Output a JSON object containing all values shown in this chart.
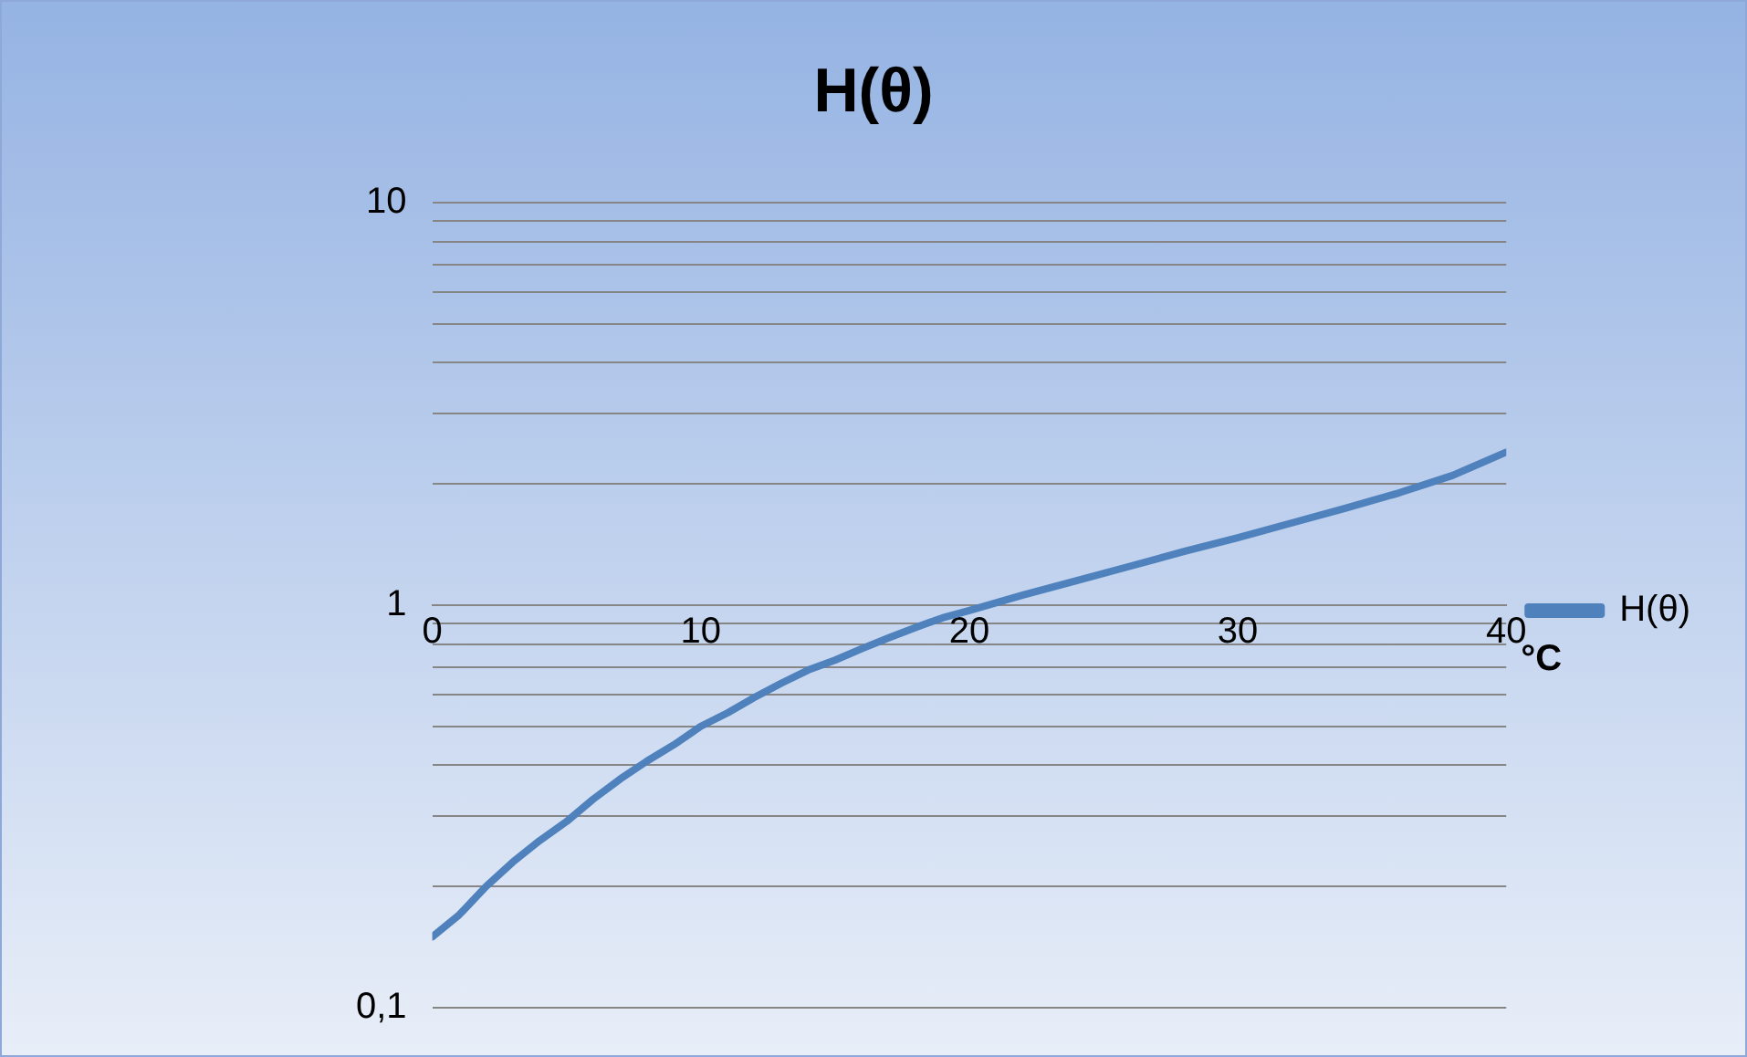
{
  "chart_data": {
    "type": "line",
    "title": "H(θ)",
    "xlabel": "°C",
    "x": [
      0,
      1,
      2,
      3,
      4,
      5,
      6,
      7,
      8,
      9,
      10,
      11,
      12,
      13,
      14,
      15,
      16,
      17,
      18,
      19,
      20,
      22,
      24,
      26,
      28,
      30,
      32,
      34,
      36,
      38,
      40
    ],
    "series": [
      {
        "name": "H(θ)",
        "color": "#4f81bd",
        "values": [
          0.15,
          0.17,
          0.2,
          0.23,
          0.26,
          0.29,
          0.33,
          0.37,
          0.41,
          0.45,
          0.5,
          0.54,
          0.59,
          0.64,
          0.69,
          0.73,
          0.78,
          0.83,
          0.88,
          0.93,
          0.97,
          1.06,
          1.15,
          1.25,
          1.36,
          1.47,
          1.6,
          1.74,
          1.9,
          2.1,
          2.4
        ]
      }
    ],
    "xlim": [
      0,
      40
    ],
    "xticks": [
      0,
      10,
      20,
      30,
      40
    ],
    "ylim": [
      0.1,
      10
    ],
    "yticks": [
      {
        "value": 0.1,
        "label": "0,1"
      },
      {
        "value": 0.2,
        "label": null
      },
      {
        "value": 0.3,
        "label": null
      },
      {
        "value": 0.4,
        "label": null
      },
      {
        "value": 0.5,
        "label": null
      },
      {
        "value": 0.6,
        "label": null
      },
      {
        "value": 0.7,
        "label": null
      },
      {
        "value": 0.8,
        "label": null
      },
      {
        "value": 0.9,
        "label": null
      },
      1,
      {
        "value": 2,
        "label": null
      },
      {
        "value": 3,
        "label": null
      },
      {
        "value": 4,
        "label": null
      },
      {
        "value": 5,
        "label": null
      },
      {
        "value": 6,
        "label": null
      },
      {
        "value": 7,
        "label": null
      },
      {
        "value": 8,
        "label": null
      },
      {
        "value": 9,
        "label": null
      },
      10
    ],
    "log": "y",
    "grid": "y",
    "legend": "right",
    "marker": "none",
    "line_style": "solid"
  }
}
